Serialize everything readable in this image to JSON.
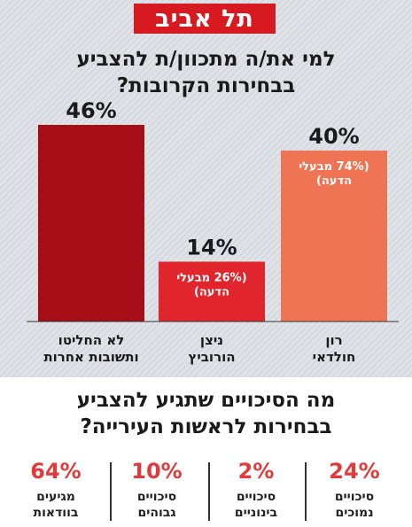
{
  "city": "תל אביב",
  "question1": {
    "line1": "למי את/ה מתכוון/ת להצביע",
    "line2": "בבחירות הקרובות?"
  },
  "chart_data": {
    "type": "bar",
    "categories": [
      "לא החליטו\nותשובות אחרות",
      "ניצן\nהורוביץ",
      "רון\nחולדאי"
    ],
    "values": [
      46,
      14,
      40
    ],
    "data_labels": [
      "46%",
      "14%",
      "40%"
    ],
    "inner_labels": [
      "",
      "(26% מבעלי\nהדעה)",
      "(74% מבעלי\nהדעה)"
    ],
    "colors": [
      "#a50e16",
      "#e0252c",
      "#ef7453"
    ],
    "ylim": [
      0,
      46
    ]
  },
  "question2": {
    "line1": "מה הסיכויים שתגיע להצביע",
    "line2": "בבחירות לראשות העירייה?"
  },
  "stats": [
    {
      "value": "24%",
      "line1": "סיכויים",
      "line2": "נמוכים"
    },
    {
      "value": "2%",
      "line1": "סיכויים",
      "line2": "בינוניים"
    },
    {
      "value": "10%",
      "line1": "סיכויים",
      "line2": "גבוהים"
    },
    {
      "value": "64%",
      "line1": "מגיעים",
      "line2": "בוודאות"
    }
  ]
}
